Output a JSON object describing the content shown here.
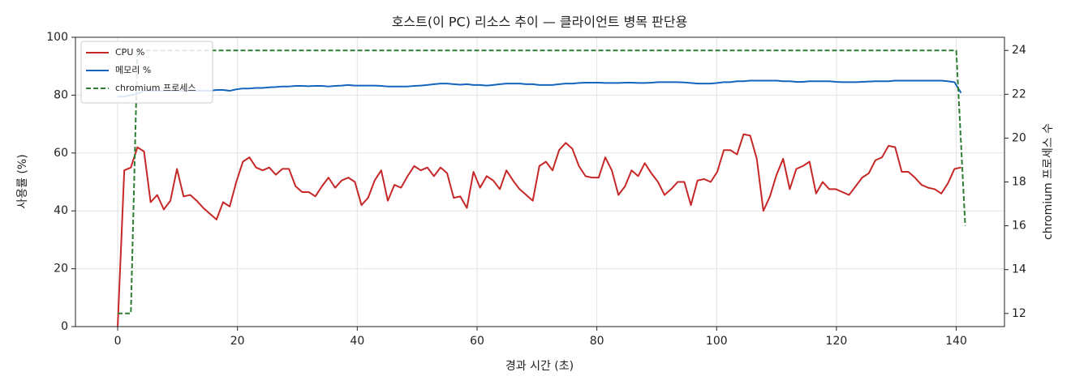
{
  "chart_data": {
    "type": "line",
    "title": "호스트(이 PC) 리소스 추이 — 클라이언트 병목 판단용",
    "xlabel": "경과 시간 (초)",
    "ylabel": "사용률 (%)",
    "y2label": "chromium 프로세스 수",
    "x": [
      0,
      1.1,
      2.2,
      3.3,
      4.4,
      5.5,
      6.6,
      7.7,
      8.8,
      9.9,
      11,
      12.1,
      13.2,
      14.3,
      15.4,
      16.5,
      17.6,
      18.7,
      19.8,
      20.9,
      22,
      23.1,
      24.2,
      25.3,
      26.4,
      27.5,
      28.6,
      29.7,
      30.8,
      31.9,
      33,
      34.1,
      35.2,
      36.3,
      37.4,
      38.5,
      39.6,
      40.7,
      41.8,
      42.9,
      44,
      45.1,
      46.2,
      47.3,
      48.4,
      49.5,
      50.6,
      51.7,
      52.8,
      53.9,
      55,
      56.1,
      57.2,
      58.3,
      59.4,
      60.5,
      61.6,
      62.7,
      63.8,
      64.9,
      66,
      67.1,
      68.2,
      69.3,
      70.4,
      71.5,
      72.6,
      73.7,
      74.8,
      75.9,
      77,
      78.1,
      79.2,
      80.3,
      81.4,
      82.5,
      83.6,
      84.7,
      85.8,
      86.9,
      88,
      89.1,
      90.2,
      91.3,
      92.4,
      93.5,
      94.6,
      95.7,
      96.8,
      97.9,
      99,
      100.1,
      101.2,
      102.3,
      103.4,
      104.5,
      105.6,
      106.7,
      107.8,
      108.9,
      110,
      111.1,
      112.2,
      113.3,
      114.4,
      115.5,
      116.6,
      117.7,
      118.8,
      119.9,
      121,
      122.1,
      123.2,
      124.3,
      125.4,
      126.5,
      127.6,
      128.7,
      129.8,
      130.9,
      132,
      133.1,
      134.2,
      135.3,
      136.4,
      137.5,
      138.6,
      139.7,
      140.8
    ],
    "series": [
      {
        "name": "CPU %",
        "color": "#c62828",
        "linestyle": "solid",
        "values": [
          0,
          54,
          55,
          62,
          60.5,
          43,
          45.5,
          40.5,
          43.5,
          54.5,
          45,
          45.5,
          43.5,
          41,
          39,
          37,
          43,
          41.5,
          50,
          57,
          58.5,
          55,
          54,
          55,
          52.5,
          54.5,
          54.5,
          48.5,
          46.5,
          46.5,
          45,
          48.5,
          51.5,
          48,
          50.5,
          51.5,
          50,
          42,
          44.5,
          50.5,
          54,
          43.5,
          49,
          48,
          52,
          55.5,
          54,
          55,
          52,
          55,
          53,
          44.5,
          45,
          41,
          53.5,
          48,
          52,
          50.5,
          47.5,
          54,
          50.5,
          47.5,
          45.5,
          43.5,
          55.5,
          57,
          54,
          61,
          63.5,
          61.5,
          55.5,
          52,
          51.5,
          51.5,
          58.5,
          54,
          45.5,
          48.5,
          54,
          52,
          56.5,
          53,
          50,
          45.5,
          47.5,
          50,
          50,
          42,
          50.5,
          51,
          50,
          53.5,
          61,
          61,
          59.5,
          66.5,
          66,
          58,
          40,
          45,
          52.5,
          58,
          47.5,
          54.5,
          55.5,
          57,
          46,
          50,
          47.5,
          47.5,
          46.5,
          45.5,
          48.5,
          51.5,
          53,
          57.5,
          58.5,
          62.5,
          62,
          53.5,
          53.5,
          51.5,
          49,
          48,
          47.5,
          46,
          49.5,
          54.5,
          55
        ]
      },
      {
        "name": "메모리 %",
        "color": "#1565c0",
        "linestyle": "solid",
        "values": [
          79.5,
          79.5,
          80,
          80.5,
          81.5,
          81.5,
          81.5,
          81.5,
          81.5,
          81.5,
          81.5,
          81.5,
          81.5,
          81.5,
          81.5,
          81.8,
          81.8,
          81.5,
          82,
          82.3,
          82.3,
          82.5,
          82.5,
          82.7,
          82.8,
          83,
          83,
          83.2,
          83.2,
          83.1,
          83.2,
          83.2,
          83,
          83.2,
          83.3,
          83.5,
          83.3,
          83.3,
          83.3,
          83.3,
          83.2,
          83,
          83,
          83,
          83,
          83.2,
          83.3,
          83.5,
          83.8,
          84,
          84,
          83.8,
          83.6,
          83.8,
          83.5,
          83.5,
          83.3,
          83.5,
          83.8,
          84,
          84,
          84,
          83.8,
          83.8,
          83.5,
          83.5,
          83.5,
          83.8,
          84,
          84,
          84.2,
          84.3,
          84.3,
          84.3,
          84.2,
          84.2,
          84.2,
          84.3,
          84.3,
          84.2,
          84.2,
          84.3,
          84.5,
          84.5,
          84.5,
          84.5,
          84.4,
          84.2,
          84,
          84,
          84,
          84.2,
          84.5,
          84.5,
          84.8,
          84.8,
          85,
          85,
          85,
          85,
          85,
          84.8,
          84.8,
          84.6,
          84.6,
          84.8,
          84.8,
          84.8,
          84.8,
          84.6,
          84.5,
          84.5,
          84.5,
          84.6,
          84.7,
          84.8,
          84.8,
          84.8,
          85,
          85,
          85,
          85,
          85,
          85,
          85,
          85,
          84.8,
          84.5,
          80.8
        ]
      },
      {
        "name": "chromium 프로세스",
        "color": "#2e7d32",
        "linestyle": "dashed",
        "axis": "y2",
        "x": [
          0,
          2.2,
          3.3,
          140,
          141.5
        ],
        "values": [
          12,
          12,
          24,
          24,
          16
        ]
      }
    ],
    "xlim": [
      -7.05,
      148.05
    ],
    "xticks": [
      0,
      20,
      40,
      60,
      80,
      100,
      120,
      140
    ],
    "ylim": [
      0,
      100
    ],
    "yticks": [
      0,
      20,
      40,
      60,
      80,
      100
    ],
    "y2lim": [
      11.4,
      24.6
    ],
    "y2ticks": [
      12,
      14,
      16,
      18,
      20,
      22,
      24
    ],
    "grid": true,
    "legend": "upper left"
  }
}
